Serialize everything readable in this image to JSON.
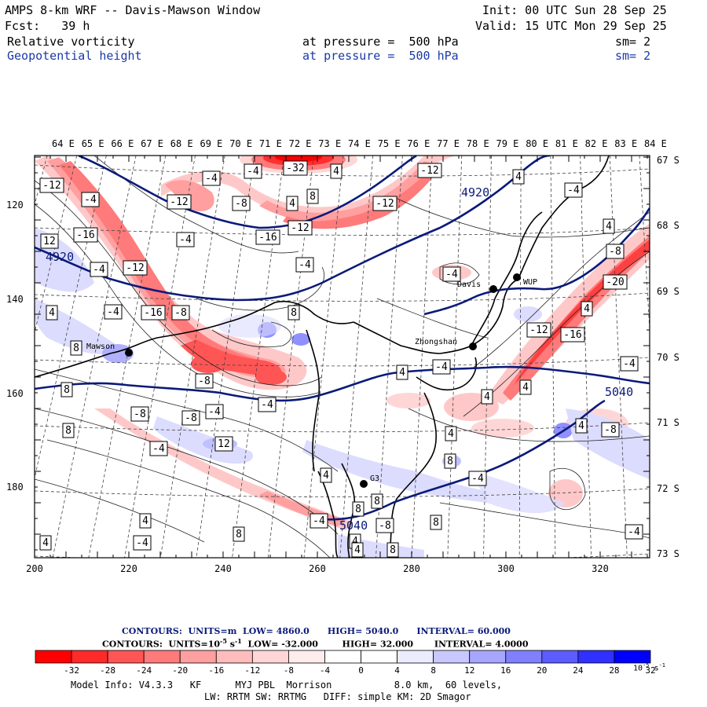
{
  "header": {
    "line1_left": "AMPS 8-km WRF -- Davis-Mawson Window",
    "line1_right": "Init: 00 UTC Sun 28 Sep 25",
    "line2_left": "Fcst:   39 h",
    "line2_right": "Valid: 15 UTC Mon 29 Sep 25",
    "field1_name": "Relative vorticity",
    "field1_level": "at pressure =  500 hPa",
    "field1_sm": "sm= 2",
    "field2_name": "Geopotential height",
    "field2_level": "at pressure =  500 hPa",
    "field2_sm": "sm= 2"
  },
  "top_lon_labels": [
    "64 E",
    "65 E",
    "66 E",
    "67 E",
    "68 E",
    "69 E",
    "70 E",
    "71 E",
    "72 E",
    "73 E",
    "74 E",
    "75 E",
    "76 E",
    "77 E",
    "78 E",
    "79 E",
    "80 E",
    "81 E",
    "82 E",
    "83 E",
    "84 E"
  ],
  "right_lat_labels": [
    "67 S",
    "68 S",
    "69 S",
    "70 S",
    "71 S",
    "72 S",
    "73 S"
  ],
  "y_axis_labels": [
    "120",
    "140",
    "160",
    "180"
  ],
  "x_axis_labels": [
    "200",
    "220",
    "240",
    "260",
    "280",
    "300",
    "320"
  ],
  "stations": [
    {
      "name": "Mawson"
    },
    {
      "name": "Davis"
    },
    {
      "name": "WUP"
    },
    {
      "name": "Zhongshan"
    },
    {
      "name": "G3"
    }
  ],
  "height_contour_labels": [
    "4920",
    "4920",
    "5040",
    "5040"
  ],
  "vorticity_labels": [
    "-4",
    "-32",
    "4",
    "-12",
    "-4",
    "-12",
    "8",
    "-12",
    "4",
    "-4",
    "-4",
    "-12",
    "-8",
    "-12",
    "-16",
    "4",
    "4",
    "-16",
    "-4",
    "12",
    "-8",
    "-4",
    "-4",
    "-12",
    "-4",
    "-20",
    "4",
    "-4",
    "8",
    "-16",
    "-8",
    "4",
    "8",
    "-12",
    "-16",
    "-4",
    "4",
    "-4",
    "8",
    "-8",
    "-4",
    "4",
    "4",
    "-4",
    "-8",
    "-8",
    "8",
    "4",
    "4",
    "-8",
    "12",
    "-4",
    "8",
    "4",
    "-4",
    "8",
    "8",
    "8",
    "4",
    "8",
    "-4",
    "-8",
    "4",
    "-4",
    "4",
    "-4",
    "8",
    "4"
  ],
  "footer": {
    "contours1_prefix": "CONTOURS:  UNITS=m  LOW=",
    "contours1_low": "4860.0",
    "contours1_high_label": "HIGH=",
    "contours1_high": "5040.0",
    "contours1_int_label": "INTERVAL=",
    "contours1_int": "60.000",
    "contours2_prefix": "CONTOURS:  UNITS=10",
    "contours2_exp": "-5",
    "contours2_unit": " s",
    "contours2_unit_exp": "-1",
    "contours2_low_label": "LOW=",
    "contours2_low": "-32.000",
    "contours2_high_label": "HIGH=",
    "contours2_high": "32.000",
    "contours2_int_label": "INTERVAL=",
    "contours2_int": "4.0000",
    "model_info": "Model Info: V4.3.3   KF      MYJ PBL  Morrison           8.0 km,  60 levels,",
    "model_info2": "LW: RRTM SW: RRTMG   DIFF: simple KM: 2D Smagor"
  },
  "colorbar": {
    "labels": [
      "-32",
      "-28",
      "-24",
      "-20",
      "-16",
      "-12",
      "-8",
      "-4",
      "0",
      "4",
      "8",
      "12",
      "16",
      "20",
      "24",
      "28",
      "32"
    ],
    "unit_main": "10",
    "unit_exp": "-5",
    "unit_s": " s",
    "unit_s_exp": "-1",
    "colors": [
      "#ff0000",
      "#ff2a2a",
      "#ff5555",
      "#ff7a7a",
      "#ff9f9f",
      "#ffbcbc",
      "#ffd6d6",
      "#ffecec",
      "#ffffff",
      "#ffffff",
      "#ececff",
      "#c8c8ff",
      "#a6a6ff",
      "#8080ff",
      "#5c5cff",
      "#3030ff",
      "#0000ff"
    ]
  }
}
